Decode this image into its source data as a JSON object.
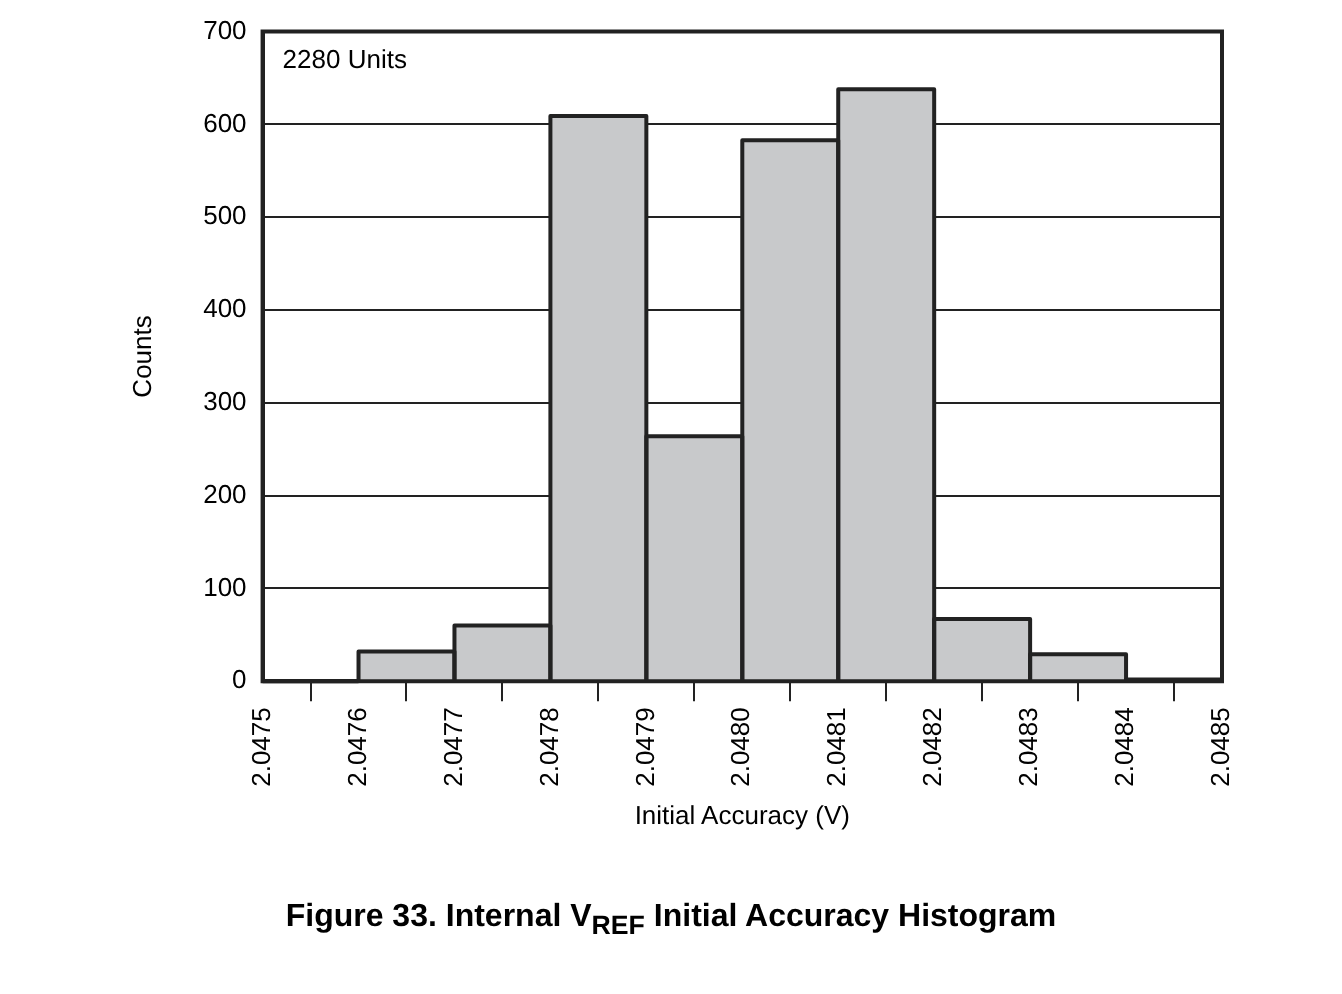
{
  "chart_data": {
    "type": "histogram",
    "title": "Figure 33. Internal V$_{REF}$ Initial Accuracy Histogram",
    "xlabel": "Initial Accuracy (V)",
    "ylabel": "Counts",
    "annotations": [
      "2280 Units"
    ],
    "bins": [
      2.0475,
      2.0476,
      2.0477,
      2.0478,
      2.0479,
      2.048,
      2.0481,
      2.0482,
      2.0483,
      2.0484,
      2.0485
    ],
    "values": [
      0,
      32,
      60,
      609,
      264,
      583,
      638,
      67,
      29,
      2
    ],
    "color": "#c8c9cb",
    "xlim": [
      2.0475,
      2.0485
    ],
    "xticks": [
      2.0475,
      2.0476,
      2.0477,
      2.0478,
      2.0479,
      {
        "value": 2.048,
        "label": "2.0480"
      },
      2.0481,
      2.0482,
      2.0483,
      2.0484,
      2.0485
    ],
    "ylim": [
      0,
      700
    ],
    "yticks": [
      0,
      100,
      200,
      300,
      400,
      500,
      600,
      700
    ],
    "grid": "y"
  }
}
